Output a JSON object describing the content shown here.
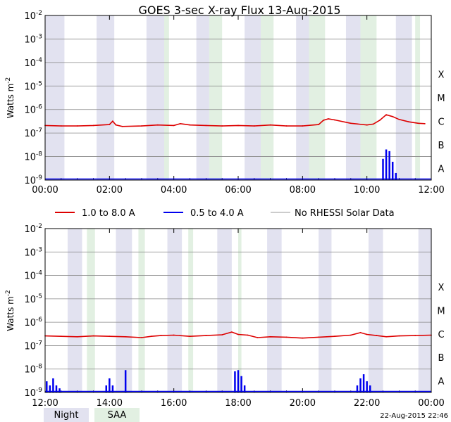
{
  "title": "GOES 3-sec X-ray Flux   13-Aug-2015",
  "timestamp": "22-Aug-2015 22:46",
  "colors": {
    "long": "#dd0000",
    "short": "#0000ee",
    "nodata": "#999999",
    "night": "#e2e2f0",
    "saa": "#e2f0e2",
    "grid": "#888888"
  },
  "legend": {
    "long": "1.0 to 8.0 A",
    "short": "0.5 to 4.0 A",
    "nodata": "No RHESSI Solar Data"
  },
  "bottom_legend": {
    "night": "Night",
    "saa": "SAA"
  },
  "chart_data": [
    {
      "type": "line",
      "ylabel": "Watts m-2",
      "yscale": "log",
      "ylim": [
        1e-09,
        0.01
      ],
      "ytick_labels": [
        "10-9",
        "10-8",
        "10-7",
        "10-6",
        "10-5",
        "10-4",
        "10-3",
        "10-2"
      ],
      "class_labels": [
        "A",
        "B",
        "C",
        "M",
        "X"
      ],
      "xlim_hours": [
        0,
        12
      ],
      "xtick_labels": [
        "00:00",
        "02:00",
        "04:00",
        "06:00",
        "08:00",
        "10:00",
        "12:00"
      ],
      "night_bands": [
        [
          0.0,
          0.6
        ],
        [
          1.6,
          2.15
        ],
        [
          3.15,
          3.7
        ],
        [
          4.7,
          5.1
        ],
        [
          6.2,
          6.7
        ],
        [
          7.8,
          8.2
        ],
        [
          9.35,
          9.8
        ],
        [
          10.9,
          11.4
        ]
      ],
      "saa_bands": [
        [
          3.7,
          3.85
        ],
        [
          5.1,
          5.5
        ],
        [
          6.7,
          7.1
        ],
        [
          8.2,
          8.7
        ],
        [
          9.8,
          10.3
        ],
        [
          11.5,
          11.65
        ]
      ],
      "series": [
        {
          "name": "1.0 to 8.0 A",
          "x": [
            0,
            0.5,
            1,
            1.5,
            2.0,
            2.1,
            2.2,
            2.4,
            3,
            3.5,
            4,
            4.2,
            4.5,
            5,
            5.5,
            6,
            6.5,
            7,
            7.5,
            8,
            8.5,
            8.65,
            8.8,
            9,
            9.5,
            10,
            10.2,
            10.4,
            10.6,
            10.8,
            11,
            11.3,
            11.6,
            11.8
          ],
          "y": [
            2.1e-07,
            2e-07,
            2e-07,
            2.1e-07,
            2.3e-07,
            3.2e-07,
            2.2e-07,
            1.9e-07,
            2e-07,
            2.2e-07,
            2.1e-07,
            2.5e-07,
            2.2e-07,
            2.1e-07,
            2e-07,
            2.1e-07,
            2e-07,
            2.2e-07,
            2e-07,
            2e-07,
            2.3e-07,
            3.5e-07,
            4e-07,
            3.6e-07,
            2.6e-07,
            2.2e-07,
            2.4e-07,
            3.5e-07,
            6e-07,
            5e-07,
            3.8e-07,
            3e-07,
            2.6e-07,
            2.5e-07
          ]
        },
        {
          "name": "0.5 to 4.0 A",
          "x": [
            10.4,
            10.5,
            10.6,
            10.7,
            10.8,
            10.9,
            11.0
          ],
          "y": [
            1e-09,
            8e-09,
            2e-08,
            1.7e-08,
            6e-09,
            2e-09,
            1e-09
          ]
        }
      ]
    },
    {
      "type": "line",
      "ylabel": "Watts m-2",
      "yscale": "log",
      "ylim": [
        1e-09,
        0.01
      ],
      "ytick_labels": [
        "10-9",
        "10-8",
        "10-7",
        "10-6",
        "10-5",
        "10-4",
        "10-3",
        "10-2"
      ],
      "class_labels": [
        "A",
        "B",
        "C",
        "M",
        "X"
      ],
      "xlim_hours": [
        12,
        24
      ],
      "xtick_labels": [
        "12:00",
        "14:00",
        "16:00",
        "18:00",
        "20:00",
        "22:00",
        "00:00"
      ],
      "night_bands": [
        [
          12.7,
          13.15
        ],
        [
          14.2,
          14.7
        ],
        [
          15.8,
          16.25
        ],
        [
          17.35,
          17.8
        ],
        [
          18.9,
          19.35
        ],
        [
          20.5,
          20.9
        ],
        [
          22.05,
          22.5
        ],
        [
          23.6,
          24.0
        ]
      ],
      "saa_bands": [
        [
          13.3,
          13.55
        ],
        [
          14.9,
          15.1
        ],
        [
          16.45,
          16.6
        ],
        [
          18.0,
          18.1
        ]
      ],
      "series": [
        {
          "name": "1.0 to 8.0 A",
          "x": [
            12,
            12.5,
            13,
            13.5,
            14,
            14.5,
            15,
            15.3,
            15.6,
            16,
            16.5,
            17,
            17.5,
            17.8,
            18,
            18.3,
            18.6,
            19,
            19.5,
            20,
            20.5,
            21,
            21.5,
            21.8,
            22,
            22.3,
            22.6,
            23,
            23.5,
            24
          ],
          "y": [
            2.6e-07,
            2.5e-07,
            2.4e-07,
            2.6e-07,
            2.5e-07,
            2.4e-07,
            2.2e-07,
            2.5e-07,
            2.7e-07,
            2.8e-07,
            2.5e-07,
            2.7e-07,
            2.9e-07,
            3.8e-07,
            3e-07,
            2.8e-07,
            2.2e-07,
            2.4e-07,
            2.3e-07,
            2.1e-07,
            2.3e-07,
            2.5e-07,
            2.8e-07,
            3.6e-07,
            3e-07,
            2.7e-07,
            2.4e-07,
            2.6e-07,
            2.7e-07,
            2.8e-07
          ]
        },
        {
          "name": "0.5 to 4.0 A",
          "x": [
            12.05,
            12.15,
            12.25,
            12.35,
            12.45,
            13.9,
            14.0,
            14.1,
            14.5,
            17.9,
            18.0,
            18.1,
            18.2,
            21.7,
            21.8,
            21.9,
            22.0,
            22.1
          ],
          "y": [
            3e-09,
            2e-09,
            4e-09,
            2e-09,
            1.5e-09,
            2e-09,
            4e-09,
            2e-09,
            9e-09,
            8e-09,
            9e-09,
            5e-09,
            2e-09,
            2e-09,
            4e-09,
            6e-09,
            3e-09,
            2e-09
          ]
        }
      ]
    }
  ]
}
